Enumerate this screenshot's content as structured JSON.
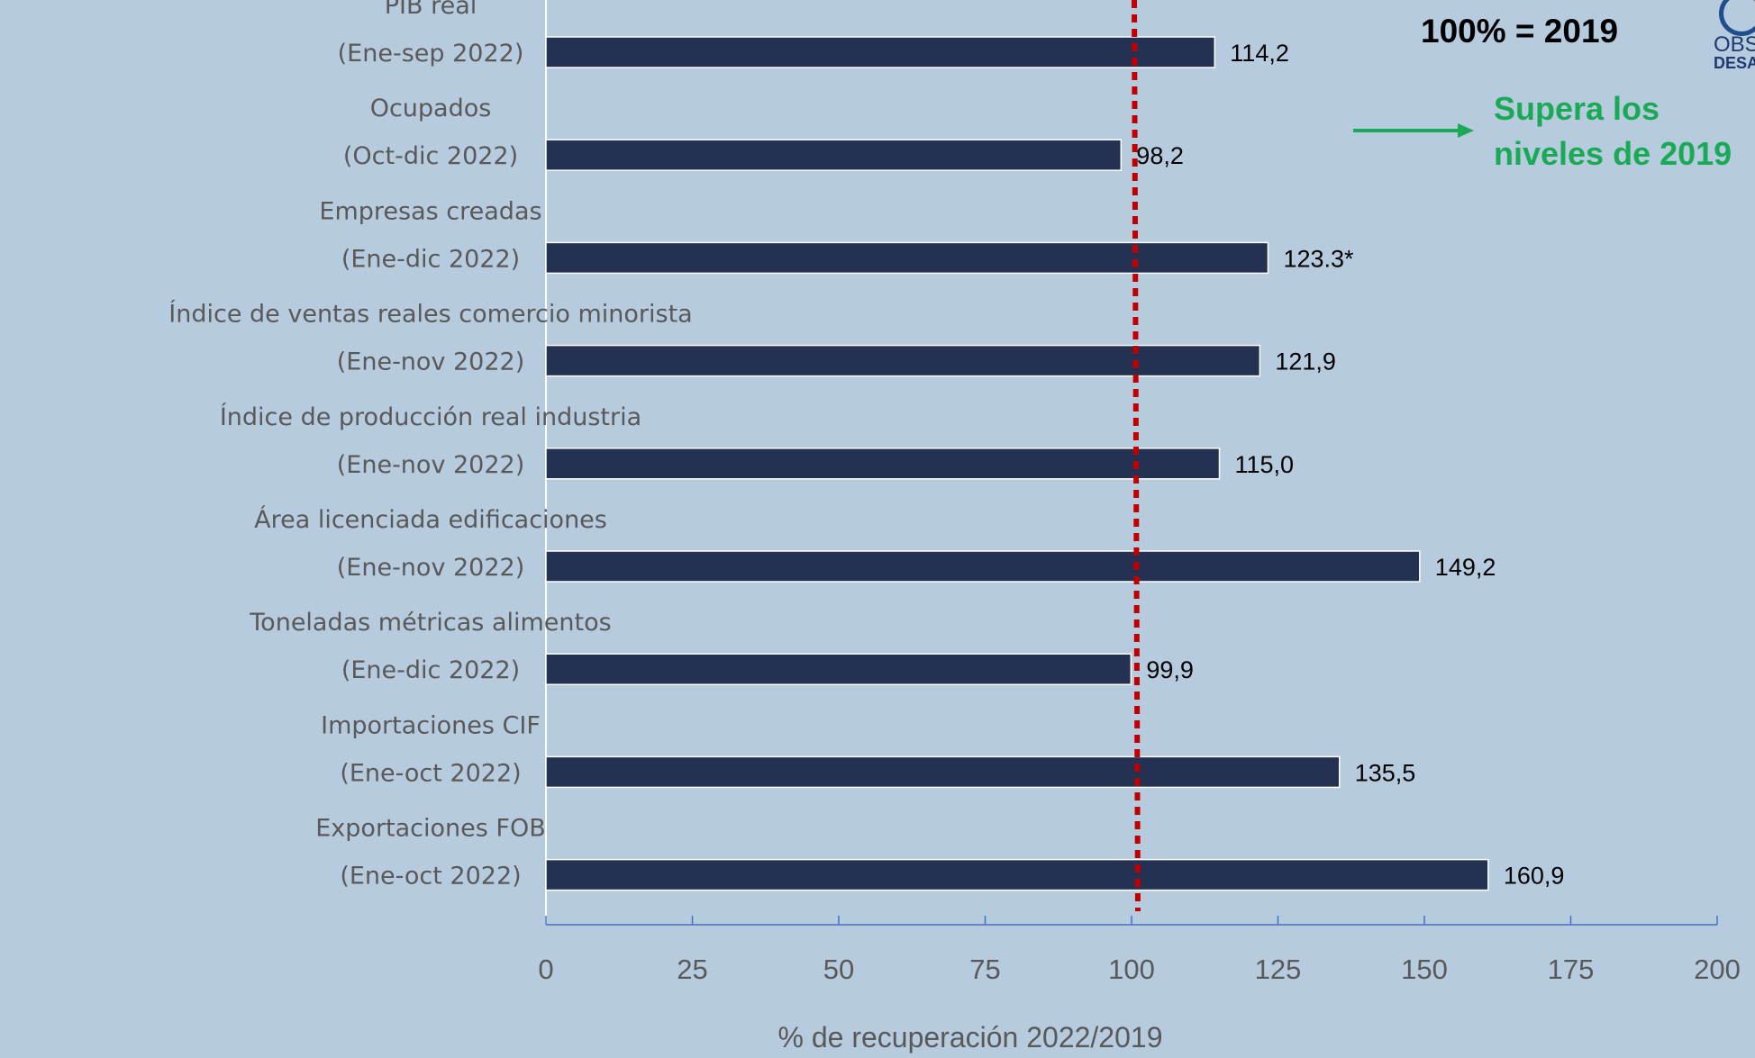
{
  "chart_data": {
    "type": "bar",
    "orientation": "horizontal",
    "categories": [
      [
        "PIB real",
        "(Ene-sep 2022)"
      ],
      [
        "Ocupados",
        "(Oct-dic 2022)"
      ],
      [
        "Empresas creadas",
        "(Ene-dic 2022)"
      ],
      [
        "Índice de ventas reales comercio minorista",
        "(Ene-nov 2022)"
      ],
      [
        "Índice de producción real industria",
        "(Ene-nov 2022)"
      ],
      [
        "Área licenciada edificaciones",
        "(Ene-nov 2022)"
      ],
      [
        "Toneladas métricas alimentos",
        "(Ene-dic 2022)"
      ],
      [
        "Importaciones CIF",
        "(Ene-oct 2022)"
      ],
      [
        "Exportaciones FOB",
        "(Ene-oct 2022)"
      ]
    ],
    "values": [
      114.2,
      98.2,
      123.3,
      121.9,
      115.0,
      149.2,
      99.9,
      135.5,
      160.9
    ],
    "value_labels": [
      "114,2",
      "98,2",
      "123.3*",
      "121,9",
      "115,0",
      "149,2",
      "99,9",
      "135,5",
      "160,9"
    ],
    "xlabel": "% de recuperación 2022/2019",
    "xlim": [
      0,
      200
    ],
    "xticks": [
      0,
      25,
      50,
      75,
      100,
      125,
      150,
      175,
      200
    ],
    "reference_line": {
      "value": 100,
      "style": "dotted",
      "color": "#c00000"
    },
    "bar_color": "#243152",
    "grid": false,
    "legend": "none"
  },
  "notes": {
    "reference": "100% = 2019",
    "exceed_line1": "Supera los",
    "exceed_line2": "niveles de 2019",
    "exceed_color": "#1aaa55"
  },
  "logo": {
    "text1": "OBS",
    "text2": "DESA"
  }
}
